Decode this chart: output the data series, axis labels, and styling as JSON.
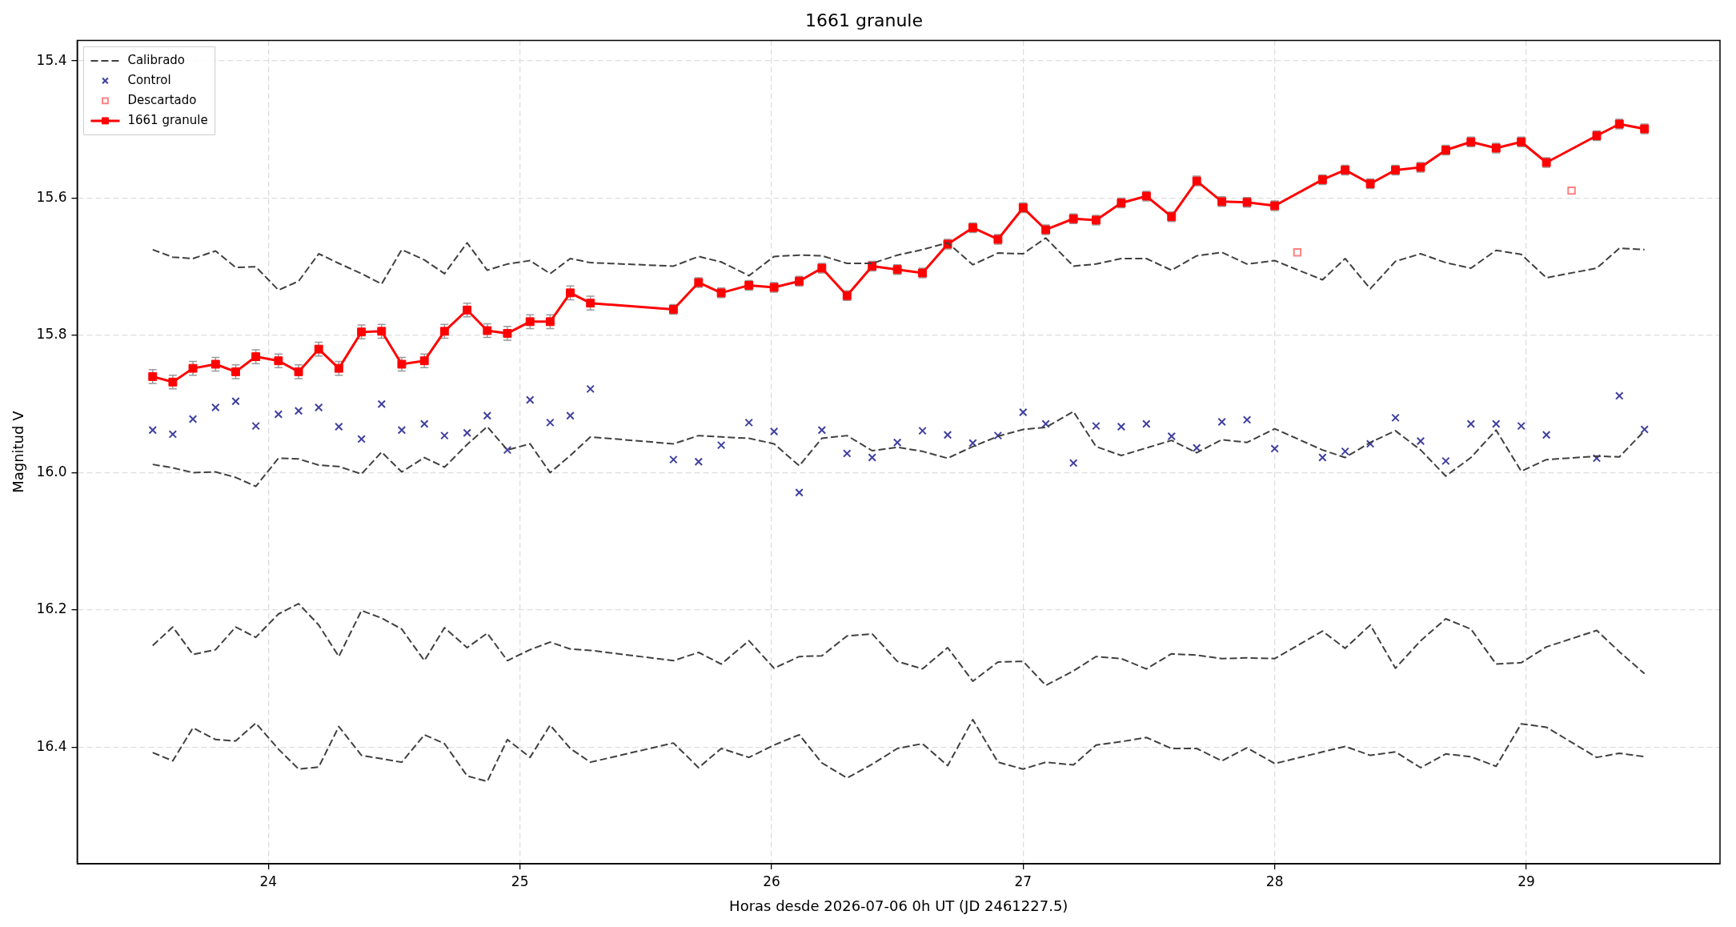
{
  "chart_data": {
    "type": "line",
    "title": "1661 granule",
    "xlabel": "Horas desde 2026-07-06 0h UT (JD 2461227.5)",
    "ylabel": "Magnitud V",
    "x": [
      23.54,
      23.62,
      23.7,
      23.79,
      23.87,
      23.95,
      24.04,
      24.12,
      24.2,
      24.28,
      24.37,
      24.45,
      24.53,
      24.62,
      24.7,
      24.79,
      24.87,
      24.95,
      25.04,
      25.12,
      25.2,
      25.28,
      25.61,
      25.71,
      25.8,
      25.91,
      26.01,
      26.11,
      26.2,
      26.3,
      26.4,
      26.5,
      26.6,
      26.7,
      26.8,
      26.9,
      27.0,
      27.09,
      27.2,
      27.29,
      27.39,
      27.49,
      27.59,
      27.69,
      27.79,
      27.89,
      28.0,
      28.19,
      28.28,
      28.38,
      28.48,
      28.58,
      28.68,
      28.78,
      28.88,
      28.98,
      29.08,
      29.28,
      29.37,
      29.47
    ],
    "series": [
      {
        "name": "Calibrado",
        "color": "#404040",
        "line_style": "dashed",
        "marker": "none",
        "values": [
          15.675,
          15.686,
          15.688,
          15.677,
          15.701,
          15.7,
          15.734,
          15.721,
          15.681,
          15.695,
          15.71,
          15.725,
          15.675,
          15.69,
          15.71,
          15.665,
          15.705,
          15.696,
          15.691,
          15.71,
          15.688,
          15.694,
          15.699,
          15.685,
          15.693,
          15.713,
          15.685,
          15.683,
          15.684,
          15.695,
          15.695,
          15.683,
          15.675,
          15.665,
          15.697,
          15.68,
          15.681,
          15.658,
          15.699,
          15.696,
          15.688,
          15.688,
          15.705,
          15.684,
          15.679,
          15.696,
          15.691,
          15.719,
          15.688,
          15.732,
          15.692,
          15.681,
          15.694,
          15.702,
          15.676,
          15.682,
          15.716,
          15.702,
          15.673,
          15.675
        ]
      },
      {
        "color": "#404040",
        "line_style": "dashed",
        "marker": "none",
        "values": [
          15.988,
          15.993,
          16.0,
          15.999,
          16.007,
          16.02,
          15.979,
          15.98,
          15.989,
          15.991,
          16.002,
          15.97,
          15.999,
          15.978,
          15.992,
          15.959,
          15.933,
          15.967,
          15.958,
          16.0,
          15.975,
          15.948,
          15.958,
          15.946,
          15.948,
          15.95,
          15.958,
          15.99,
          15.95,
          15.946,
          15.968,
          15.963,
          15.969,
          15.979,
          15.962,
          15.947,
          15.937,
          15.934,
          15.911,
          15.962,
          15.975,
          15.964,
          15.953,
          15.971,
          15.952,
          15.956,
          15.936,
          15.967,
          15.978,
          15.956,
          15.939,
          15.967,
          16.005,
          15.978,
          15.938,
          15.998,
          15.981,
          15.976,
          15.977,
          15.939
        ]
      },
      {
        "color": "#404040",
        "line_style": "dashed",
        "marker": "none",
        "values": [
          16.252,
          16.225,
          16.265,
          16.258,
          16.225,
          16.24,
          16.206,
          16.191,
          16.222,
          16.268,
          16.201,
          16.212,
          16.228,
          16.274,
          16.226,
          16.255,
          16.234,
          16.274,
          16.258,
          16.247,
          16.257,
          16.259,
          16.274,
          16.262,
          16.279,
          16.245,
          16.285,
          16.268,
          16.267,
          16.238,
          16.235,
          16.275,
          16.286,
          16.255,
          16.304,
          16.276,
          16.275,
          16.31,
          16.289,
          16.268,
          16.271,
          16.286,
          16.264,
          16.266,
          16.271,
          16.27,
          16.271,
          16.231,
          16.256,
          16.222,
          16.285,
          16.245,
          16.213,
          16.228,
          16.279,
          16.277,
          16.254,
          16.23,
          16.261,
          16.293
        ]
      },
      {
        "color": "#404040",
        "line_style": "dashed",
        "marker": "none",
        "values": [
          16.408,
          16.42,
          16.372,
          16.389,
          16.391,
          16.365,
          16.403,
          16.432,
          16.429,
          16.37,
          16.412,
          16.417,
          16.422,
          16.382,
          16.395,
          16.442,
          16.45,
          16.389,
          16.415,
          16.368,
          16.402,
          16.422,
          16.394,
          16.43,
          16.402,
          16.415,
          16.397,
          16.382,
          16.423,
          16.445,
          16.425,
          16.402,
          16.395,
          16.427,
          16.36,
          16.422,
          16.432,
          16.422,
          16.426,
          16.397,
          16.392,
          16.386,
          16.402,
          16.402,
          16.42,
          16.401,
          16.424,
          16.407,
          16.399,
          16.412,
          16.407,
          16.43,
          16.41,
          16.414,
          16.428,
          16.366,
          16.371,
          16.415,
          16.409,
          16.414
        ]
      },
      {
        "name": "Control",
        "type": "scatter",
        "color": "#3f3f9f",
        "marker": "cross",
        "values": [
          15.938,
          15.944,
          15.922,
          15.905,
          15.896,
          15.932,
          15.915,
          15.91,
          15.905,
          15.933,
          15.951,
          15.9,
          15.938,
          15.929,
          15.946,
          15.942,
          15.917,
          15.967,
          15.894,
          15.927,
          15.917,
          15.878,
          15.981,
          15.984,
          15.96,
          15.927,
          15.94,
          16.029,
          15.938,
          15.972,
          15.978,
          15.956,
          15.939,
          15.945,
          15.957,
          15.946,
          15.912,
          15.929,
          15.986,
          15.932,
          15.933,
          15.929,
          15.947,
          15.964,
          15.926,
          15.923,
          15.965,
          15.978,
          15.969,
          15.958,
          15.92,
          15.954,
          15.983,
          15.929,
          15.929,
          15.932,
          15.945,
          15.979,
          15.888,
          15.937
        ]
      },
      {
        "name": "Descartado",
        "type": "scatter",
        "color": "#ff8080",
        "marker": "square",
        "x": [
          28.09,
          29.18
        ],
        "values": [
          15.679,
          15.589
        ]
      },
      {
        "name": "1661 granule",
        "color": "#ff0000",
        "line_style": "solid",
        "marker": "square",
        "values": [
          15.86,
          15.868,
          15.848,
          15.842,
          15.853,
          15.831,
          15.837,
          15.853,
          15.82,
          15.848,
          15.795,
          15.794,
          15.842,
          15.837,
          15.794,
          15.763,
          15.793,
          15.797,
          15.78,
          15.78,
          15.738,
          15.753,
          15.762,
          15.723,
          15.738,
          15.727,
          15.73,
          15.721,
          15.702,
          15.742,
          15.699,
          15.704,
          15.709,
          15.667,
          15.643,
          15.66,
          15.614,
          15.646,
          15.63,
          15.632,
          15.607,
          15.597,
          15.627,
          15.575,
          15.605,
          15.606,
          15.611,
          15.573,
          15.559,
          15.579,
          15.559,
          15.555,
          15.53,
          15.518,
          15.527,
          15.518,
          15.548,
          15.509,
          15.492,
          15.499
        ],
        "errors": [
          0.01,
          0.01,
          0.01,
          0.01,
          0.01,
          0.01,
          0.01,
          0.01,
          0.01,
          0.01,
          0.01,
          0.01,
          0.01,
          0.01,
          0.01,
          0.01,
          0.01,
          0.01,
          0.01,
          0.01,
          0.01,
          0.01,
          0.007,
          0.007,
          0.007,
          0.007,
          0.007,
          0.007,
          0.007,
          0.007,
          0.007,
          0.007,
          0.007,
          0.007,
          0.007,
          0.007,
          0.007,
          0.007,
          0.007,
          0.007,
          0.007,
          0.007,
          0.007,
          0.007,
          0.007,
          0.007,
          0.007,
          0.007,
          0.007,
          0.007,
          0.007,
          0.007,
          0.007,
          0.007,
          0.007,
          0.007,
          0.007,
          0.007,
          0.007,
          0.007
        ]
      }
    ],
    "xlim": [
      23.24,
      29.77
    ],
    "xticks": [
      24,
      25,
      26,
      27,
      28,
      29
    ],
    "ylim": [
      16.57,
      15.37
    ],
    "yticks": [
      15.4,
      15.6,
      15.8,
      {
        "value": 16,
        "label": "16.0"
      },
      16.2,
      16.4
    ],
    "grid": true,
    "legend": "top left"
  }
}
